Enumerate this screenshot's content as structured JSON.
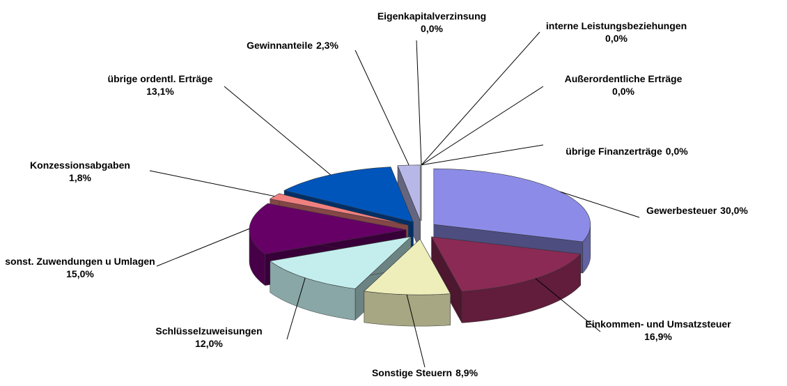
{
  "chart_data": {
    "type": "pie3d",
    "categories": [
      "Gewerbesteuer",
      "Einkommen- und Umsatzsteuer",
      "Sonstige Steuern",
      "Schlüsselzuweisungen",
      "sonst. Zuwendungen u Umlagen",
      "Konzessionsabgaben",
      "übrige ordentl. Erträge",
      "Gewinnanteile",
      "Eigenkapitalverzinsung",
      "interne Leistungsbeziehungen",
      "Außerordentliche Erträge",
      "übrige Finanzerträge"
    ],
    "values": [
      30.0,
      16.9,
      8.9,
      12.0,
      15.0,
      1.8,
      13.1,
      2.3,
      0.0,
      0.0,
      0.0,
      0.0
    ],
    "value_labels": [
      "30,0%",
      "16,9%",
      "8,9%",
      "12,0%",
      "15,0%",
      "1,8%",
      "13,1%",
      "2,3%",
      "0,0%",
      "0,0%",
      "0,0%",
      "0,0%"
    ],
    "colors": [
      "#8c8ce8",
      "#8b2a55",
      "#eeeebb",
      "#c4eeee",
      "#660066",
      "#f08080",
      "#0055bb",
      "#b8b8e8",
      "#9999cc",
      "#9999cc",
      "#9999cc",
      "#9999cc"
    ]
  }
}
